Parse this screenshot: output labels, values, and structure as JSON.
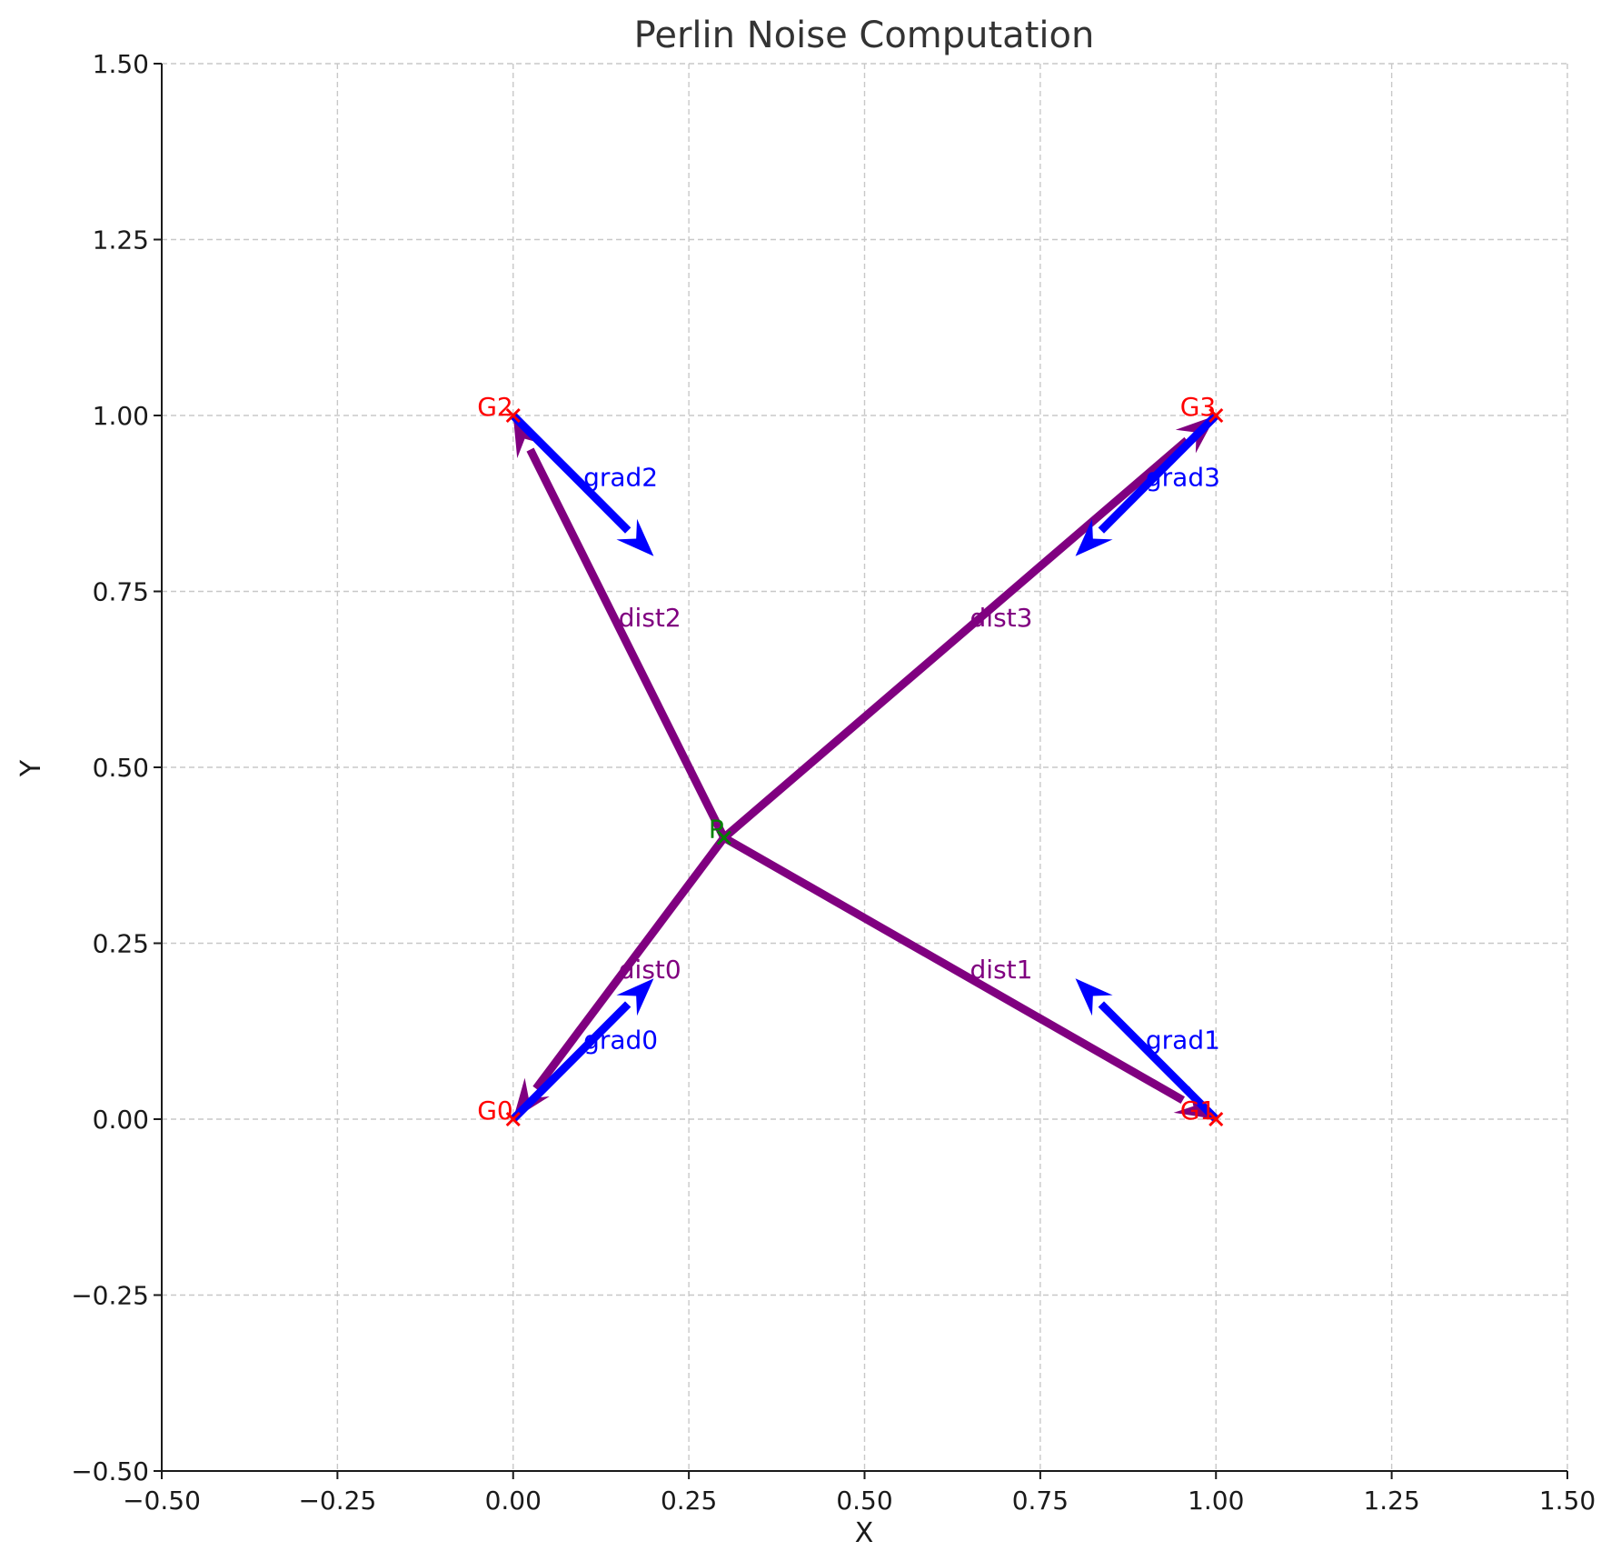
{
  "chart_data": {
    "type": "scatter",
    "title": "Perlin Noise Computation",
    "xlabel": "X",
    "ylabel": "Y",
    "xlim": [
      -0.5,
      1.5
    ],
    "ylim": [
      -0.5,
      1.5
    ],
    "xticks": [
      -0.5,
      -0.25,
      0.0,
      0.25,
      0.5,
      0.75,
      1.0,
      1.25,
      1.5
    ],
    "yticks": [
      -0.5,
      -0.25,
      0.0,
      0.25,
      0.5,
      0.75,
      1.0,
      1.25,
      1.5
    ],
    "xtick_labels": [
      "−0.50",
      "−0.25",
      "0.00",
      "0.25",
      "0.50",
      "0.75",
      "1.00",
      "1.25",
      "1.50"
    ],
    "ytick_labels": [
      "−0.50",
      "−0.25",
      "0.00",
      "0.25",
      "0.50",
      "0.75",
      "1.00",
      "1.25",
      "1.50"
    ],
    "grid": true,
    "colors": {
      "grid_point": "#ff0000",
      "gradient": "#0000ff",
      "distance": "#800080",
      "query_point": "#008000"
    },
    "grid_points": [
      {
        "label": "G0",
        "x": 0,
        "y": 0
      },
      {
        "label": "G1",
        "x": 1,
        "y": 0
      },
      {
        "label": "G2",
        "x": 0,
        "y": 1
      },
      {
        "label": "G3",
        "x": 1,
        "y": 1
      }
    ],
    "query_point": {
      "label": "P",
      "x": 0.3,
      "y": 0.4
    },
    "gradients": [
      {
        "label": "grad0",
        "x0": 0,
        "y0": 0,
        "dx": 0.2,
        "dy": 0.2,
        "label_x": 0.1,
        "label_y": 0.1
      },
      {
        "label": "grad1",
        "x0": 1,
        "y0": 0,
        "dx": -0.2,
        "dy": 0.2,
        "label_x": 0.9,
        "label_y": 0.1
      },
      {
        "label": "grad2",
        "x0": 0,
        "y0": 1,
        "dx": 0.2,
        "dy": -0.2,
        "label_x": 0.1,
        "label_y": 0.9
      },
      {
        "label": "grad3",
        "x0": 1,
        "y0": 1,
        "dx": -0.2,
        "dy": -0.2,
        "label_x": 0.9,
        "label_y": 0.9
      }
    ],
    "distances": [
      {
        "label": "dist0",
        "x0": 0.3,
        "y0": 0.4,
        "x1": 0,
        "y1": 0,
        "label_x": 0.15,
        "label_y": 0.2
      },
      {
        "label": "dist1",
        "x0": 0.3,
        "y0": 0.4,
        "x1": 1,
        "y1": 0,
        "label_x": 0.65,
        "label_y": 0.2
      },
      {
        "label": "dist2",
        "x0": 0.3,
        "y0": 0.4,
        "x1": 0,
        "y1": 1,
        "label_x": 0.15,
        "label_y": 0.7
      },
      {
        "label": "dist3",
        "x0": 0.3,
        "y0": 0.4,
        "x1": 1,
        "y1": 1,
        "label_x": 0.65,
        "label_y": 0.7
      }
    ]
  }
}
